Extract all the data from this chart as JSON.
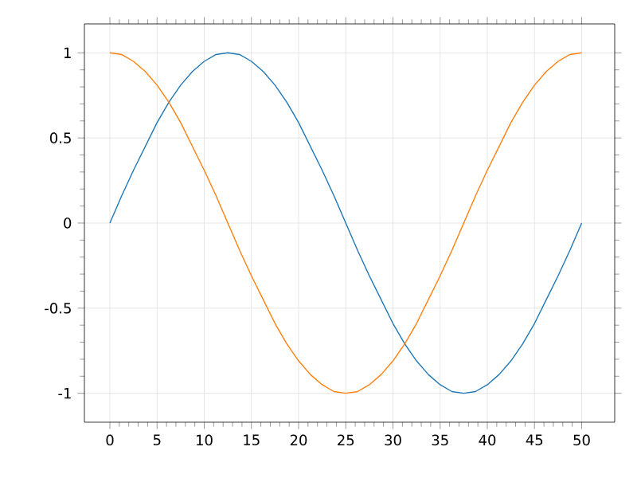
{
  "chart_data": {
    "type": "line",
    "xlim": [
      -2.7,
      53.5
    ],
    "ylim": [
      -1.17,
      1.17
    ],
    "xticks": [
      0,
      5,
      10,
      15,
      20,
      25,
      30,
      35,
      40,
      45,
      50
    ],
    "yticks": [
      -1,
      -0.5,
      0,
      0.5,
      1
    ],
    "grid": true,
    "x": [
      0,
      1.25,
      2.5,
      3.75,
      5,
      6.25,
      7.5,
      8.75,
      10,
      11.25,
      12.5,
      13.75,
      15,
      16.25,
      17.5,
      18.75,
      20,
      21.25,
      22.5,
      23.75,
      25,
      26.25,
      27.5,
      28.75,
      30,
      31.25,
      32.5,
      33.75,
      35,
      36.25,
      37.5,
      38.75,
      40,
      41.25,
      42.5,
      43.75,
      45,
      46.25,
      47.5,
      48.75,
      50
    ],
    "series": [
      {
        "color": "#1f77b4",
        "values": [
          0,
          0.16,
          0.31,
          0.45,
          0.59,
          0.71,
          0.81,
          0.89,
          0.95,
          0.99,
          1,
          0.99,
          0.95,
          0.89,
          0.81,
          0.71,
          0.59,
          0.45,
          0.31,
          0.16,
          0,
          -0.16,
          -0.31,
          -0.45,
          -0.59,
          -0.71,
          -0.81,
          -0.89,
          -0.95,
          -0.99,
          -1,
          -0.99,
          -0.95,
          -0.89,
          -0.81,
          -0.71,
          -0.59,
          -0.45,
          -0.31,
          -0.16,
          0
        ]
      },
      {
        "color": "#ff7f0e",
        "values": [
          1,
          0.99,
          0.95,
          0.89,
          0.81,
          0.71,
          0.59,
          0.45,
          0.31,
          0.16,
          0,
          -0.16,
          -0.31,
          -0.45,
          -0.59,
          -0.71,
          -0.81,
          -0.89,
          -0.95,
          -0.99,
          -1,
          -0.99,
          -0.95,
          -0.89,
          -0.81,
          -0.71,
          -0.59,
          -0.45,
          -0.31,
          -0.16,
          0,
          0.16,
          0.31,
          0.45,
          0.59,
          0.71,
          0.81,
          0.89,
          0.95,
          0.99,
          1
        ]
      }
    ]
  }
}
